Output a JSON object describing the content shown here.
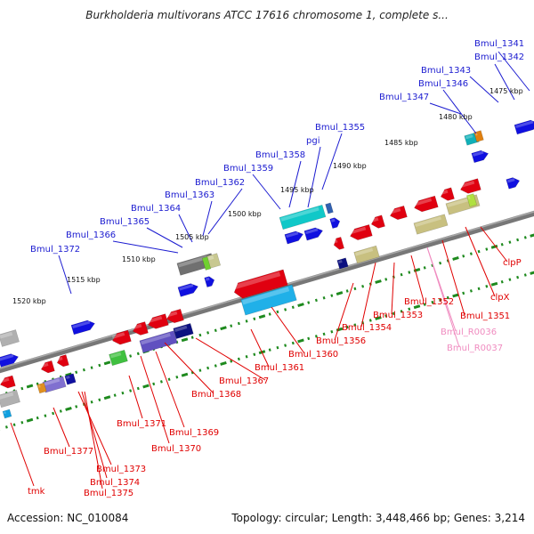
{
  "title": "Burkholderia multivorans ATCC 17616 chromosome 1, complete s...",
  "footer": {
    "accession": "Accession: NC_010084",
    "summary": "Topology: circular; Length: 3,448,466 bp; Genes: 3,214"
  },
  "colors": {
    "forward_label": "#1b1bd0",
    "reverse_label": "#e00000",
    "rna_label": "#f08cc0",
    "backbone": "#777777",
    "tick": "#1e8a1e"
  },
  "scale_labels": [
    "1475 kbp",
    "1480 kbp",
    "1485 kbp",
    "1490 kbp",
    "1495 kbp",
    "1500 kbp",
    "1505 kbp",
    "1510 kbp",
    "1515 kbp",
    "1520 kbp"
  ],
  "forward_labels": [
    "Bmul_1341",
    "Bmul_1342",
    "Bmul_1343",
    "Bmul_1346",
    "Bmul_1347",
    "Bmul_1355",
    "pgi",
    "Bmul_1358",
    "Bmul_1359",
    "Bmul_1362",
    "Bmul_1363",
    "Bmul_1364",
    "Bmul_1365",
    "Bmul_1366",
    "Bmul_1372"
  ],
  "reverse_labels": [
    "clpP",
    "clpX",
    "Bmul_1351",
    "Bmul_R0036",
    "Bmul_R0037",
    "Bmul_1352",
    "Bmul_1353",
    "Bmul_1354",
    "Bmul_1356",
    "Bmul_1360",
    "Bmul_1361",
    "Bmul_1367",
    "Bmul_1368",
    "Bmul_1369",
    "Bmul_1370",
    "Bmul_1371",
    "Bmul_1373",
    "Bmul_1374",
    "Bmul_1375",
    "Bmul_1377",
    "tmk"
  ]
}
